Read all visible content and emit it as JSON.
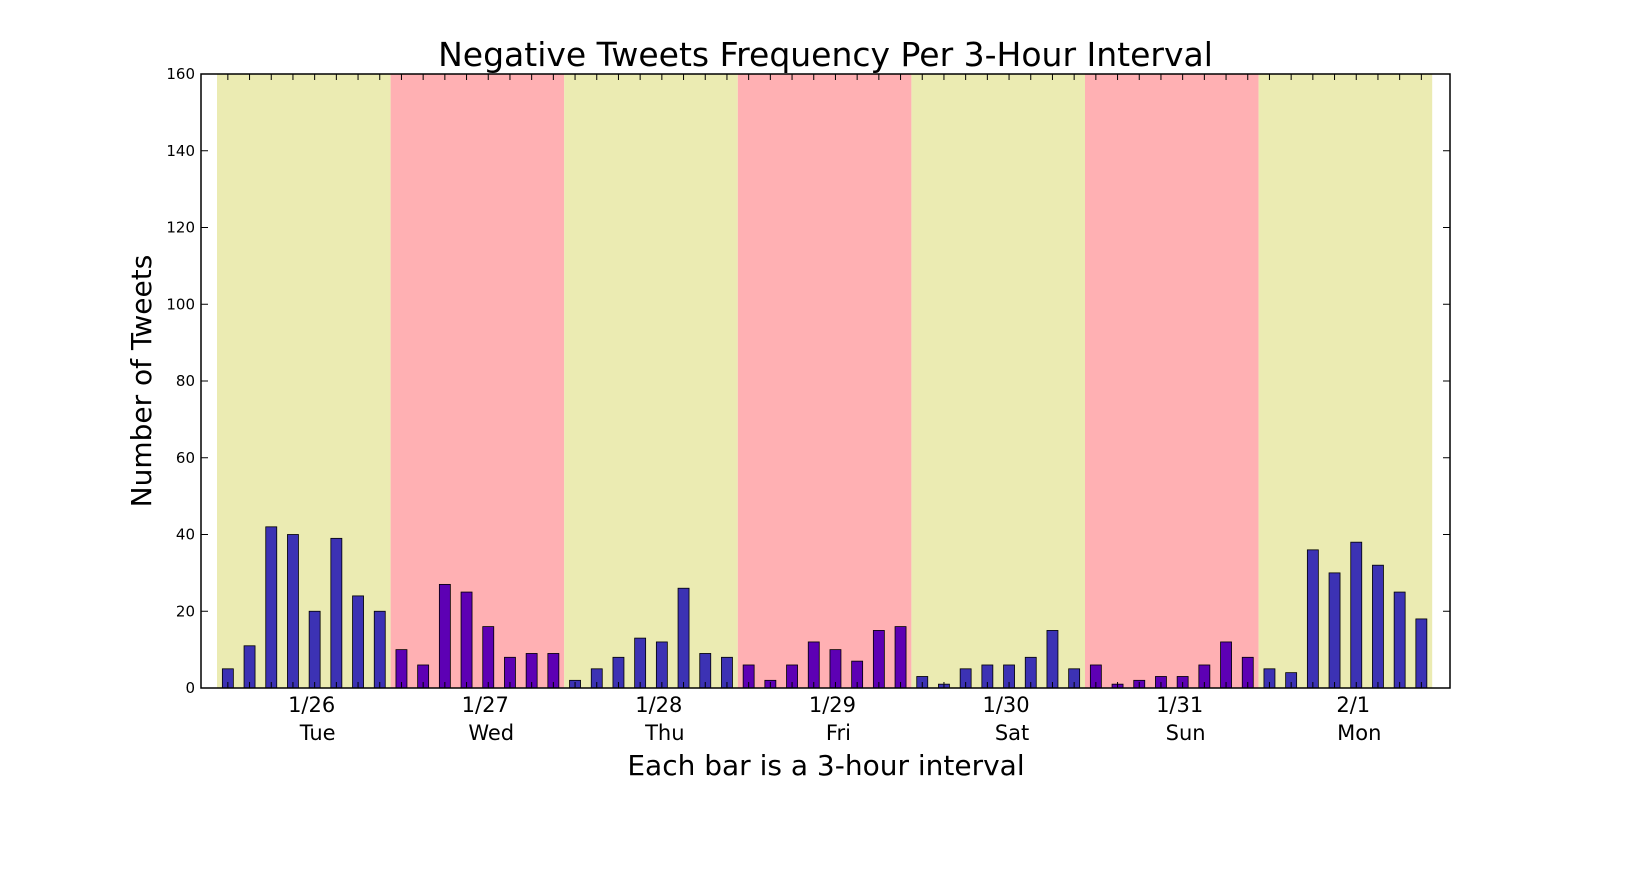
{
  "chart_data": {
    "type": "bar",
    "title": "Negative Tweets Frequency Per 3-Hour Interval",
    "xlabel": "Each bar is a 3-hour interval",
    "ylabel": "Number of Tweets",
    "ylim": [
      0,
      160
    ],
    "yticks": [
      0,
      20,
      40,
      60,
      80,
      100,
      120,
      140,
      160
    ],
    "grid": false,
    "legend": "none",
    "values": [
      5,
      11,
      42,
      40,
      20,
      39,
      24,
      20,
      10,
      6,
      27,
      25,
      16,
      8,
      9,
      9,
      2,
      5,
      8,
      13,
      12,
      26,
      9,
      8,
      6,
      2,
      6,
      12,
      10,
      7,
      15,
      16,
      3,
      1,
      5,
      6,
      6,
      8,
      15,
      5,
      6,
      1,
      2,
      3,
      3,
      6,
      12,
      8,
      5,
      4,
      36,
      30,
      38,
      32,
      25,
      18
    ],
    "days": [
      {
        "date": "1/26",
        "weekday": "Tue",
        "band": "day"
      },
      {
        "date": "1/27",
        "weekday": "Wed",
        "band": "alt"
      },
      {
        "date": "1/28",
        "weekday": "Thu",
        "band": "day"
      },
      {
        "date": "1/29",
        "weekday": "Fri",
        "band": "alt"
      },
      {
        "date": "1/30",
        "weekday": "Sat",
        "band": "day"
      },
      {
        "date": "1/31",
        "weekday": "Sun",
        "band": "alt"
      },
      {
        "date": "2/1",
        "weekday": "Mon",
        "band": "day"
      }
    ],
    "bars_per_day": 8,
    "colors": {
      "band_day": "#ebebb2",
      "band_alt": "#ffb0b3",
      "bar_day": "#3c32b4",
      "bar_alt": "#5d00b4",
      "bar_edge": "#000000"
    }
  }
}
